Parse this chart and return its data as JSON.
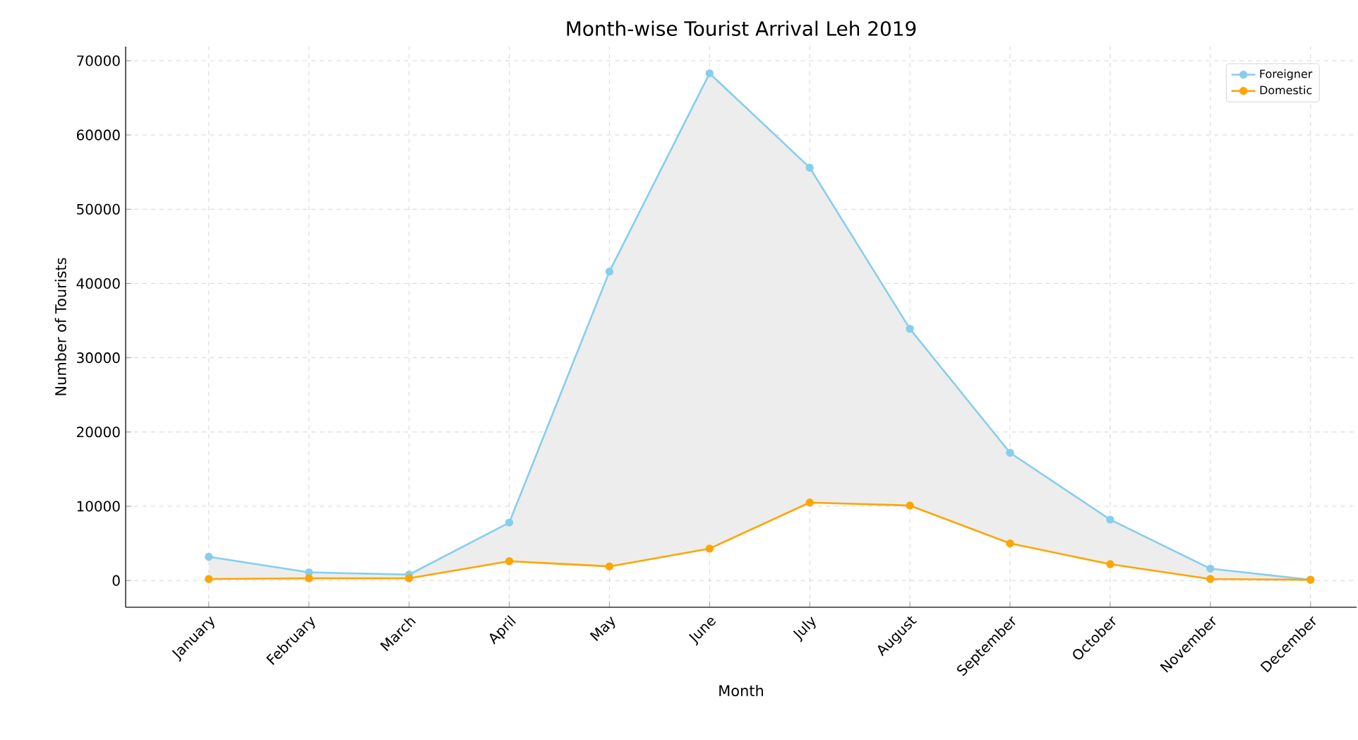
{
  "chart_data": {
    "type": "line",
    "title": "Month-wise Tourist Arrival Leh 2019",
    "xlabel": "Month",
    "ylabel": "Number of Tourists",
    "categories": [
      "January",
      "February",
      "March",
      "April",
      "May",
      "June",
      "July",
      "August",
      "September",
      "October",
      "November",
      "December"
    ],
    "series": [
      {
        "name": "Foreigner",
        "color": "#87ceeb",
        "values": [
          3200,
          1100,
          800,
          7800,
          41600,
          68300,
          55600,
          33900,
          17200,
          8200,
          1600,
          100
        ],
        "lower": [
          200,
          300,
          300,
          2600,
          1900,
          4300,
          10500,
          10100,
          5000,
          2200,
          200,
          100
        ],
        "upper": [
          3200,
          1100,
          800,
          7800,
          41600,
          68300,
          55600,
          33900,
          17200,
          8200,
          1600,
          100
        ]
      },
      {
        "name": "Domestic",
        "color": "#ffa500",
        "values": [
          200,
          300,
          300,
          2600,
          1900,
          4300,
          10500,
          10100,
          5000,
          2200,
          200,
          100
        ]
      }
    ],
    "ylim": [
      -3600,
      71900
    ],
    "yticks": [
      0,
      10000,
      20000,
      30000,
      40000,
      50000,
      60000,
      70000
    ],
    "grid": true,
    "legend": "top right",
    "marker": "circle",
    "line_style": "solid"
  }
}
